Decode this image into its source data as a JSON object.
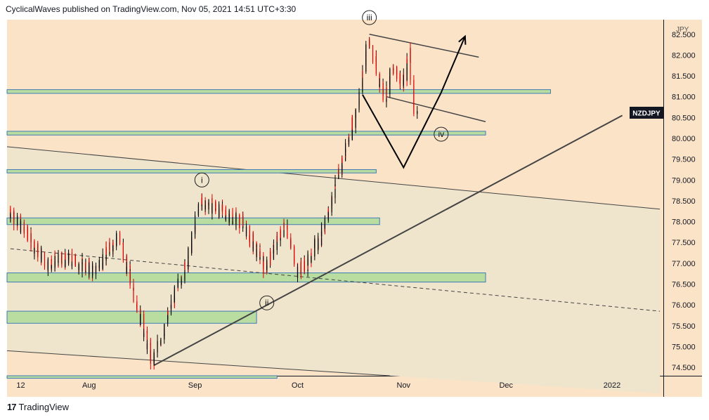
{
  "header": {
    "text": "CyclicalWaves published on TradingView.com, Nov 05, 2021 14:51 UTC+3:30"
  },
  "footer": {
    "logo": "17",
    "text": "TradingView"
  },
  "colors": {
    "background": "#fbe3c8",
    "channel_fill": "#efe4cc",
    "zone_fill": "#b9dca0",
    "zone_border": "#3f7bb5",
    "candle_up": "#000000",
    "candle_down": "#e00000",
    "trendline": "#444444"
  },
  "chart_data": {
    "type": "candlestick",
    "symbol": "NZDJPY",
    "currency": "JPY",
    "y_ticks": [
      "82.500",
      "82.000",
      "81.500",
      "81.000",
      "80.500",
      "80.000",
      "79.500",
      "79.000",
      "78.500",
      "78.000",
      "77.500",
      "77.000",
      "76.500",
      "76.000",
      "75.500",
      "75.000",
      "74.500"
    ],
    "x_ticks": [
      "12",
      "Aug",
      "Sep",
      "Oct",
      "Nov",
      "Dec",
      "2022"
    ],
    "ylim": [
      74.3,
      82.85
    ],
    "wave_labels": [
      "i",
      "ii",
      "iii",
      "iv"
    ],
    "key_points": [
      {
        "date": "2021-07-09",
        "price": 78.3
      },
      {
        "date": "2021-07-20",
        "price": 77.0
      },
      {
        "date": "2021-07-27",
        "price": 77.1
      },
      {
        "date": "2021-08-03",
        "price": 76.8
      },
      {
        "date": "2021-08-10",
        "price": 77.7
      },
      {
        "date": "2021-08-20",
        "price": 74.6
      },
      {
        "date": "2021-08-24",
        "price": 75.6
      },
      {
        "date": "2021-08-31",
        "price": 77.3
      },
      {
        "date": "2021-09-03",
        "price": 78.5
      },
      {
        "date": "2021-09-15",
        "price": 78.0
      },
      {
        "date": "2021-09-22",
        "price": 76.9
      },
      {
        "date": "2021-09-28",
        "price": 78.0
      },
      {
        "date": "2021-10-01",
        "price": 76.8
      },
      {
        "date": "2021-10-04",
        "price": 77.0
      },
      {
        "date": "2021-10-08",
        "price": 77.6
      },
      {
        "date": "2021-10-13",
        "price": 79.0
      },
      {
        "date": "2021-10-18",
        "price": 80.5
      },
      {
        "date": "2021-10-20",
        "price": 81.2
      },
      {
        "date": "2021-10-22",
        "price": 82.4
      },
      {
        "date": "2021-10-25",
        "price": 81.5
      },
      {
        "date": "2021-10-27",
        "price": 81.0
      },
      {
        "date": "2021-10-29",
        "price": 81.6
      },
      {
        "date": "2021-11-02",
        "price": 81.4
      },
      {
        "date": "2021-11-03",
        "price": 82.1
      },
      {
        "date": "2021-11-04",
        "price": 81.0
      },
      {
        "date": "2021-11-05",
        "price": 80.6
      }
    ],
    "zones": [
      {
        "from": "2021-07-08",
        "to": "2021-12-14",
        "low": 81.08,
        "high": 81.17
      },
      {
        "from": "2021-07-08",
        "to": "2021-11-25",
        "low": 80.08,
        "high": 80.17
      },
      {
        "from": "2021-07-08",
        "to": "2021-10-24",
        "low": 79.17,
        "high": 79.25
      },
      {
        "from": "2021-07-08",
        "to": "2021-10-25",
        "low": 77.93,
        "high": 78.09
      },
      {
        "from": "2021-07-08",
        "to": "2021-11-25",
        "low": 76.55,
        "high": 76.77
      },
      {
        "from": "2021-07-08",
        "to": "2021-09-19",
        "low": 75.56,
        "high": 75.85
      },
      {
        "from": "2021-07-08",
        "to": "2021-09-25",
        "low": 74.24,
        "high": 74.3
      }
    ],
    "channel_upper": {
      "from": {
        "date": "2021-07-08",
        "price": 79.8
      },
      "to": {
        "date": "2022-01-15",
        "price": 78.3
      }
    },
    "channel_lower": {
      "from": {
        "date": "2021-07-08",
        "price": 74.9
      },
      "to": {
        "date": "2021-10-28",
        "price": 74.3
      }
    },
    "trendlines": [
      {
        "from": {
          "date": "2021-08-20",
          "price": 74.55
        },
        "to": {
          "date": "2022-01-04",
          "price": 80.55
        },
        "style": "solid"
      },
      {
        "from": {
          "date": "2021-07-09",
          "price": 77.35
        },
        "to": {
          "date": "2022-01-15",
          "price": 75.85
        },
        "style": "dashed"
      },
      {
        "from": {
          "date": "2021-10-22",
          "price": 82.5
        },
        "to": {
          "date": "2021-11-23",
          "price": 81.95
        },
        "style": "solid"
      },
      {
        "from": {
          "date": "2021-10-27",
          "price": 81.0
        },
        "to": {
          "date": "2021-11-25",
          "price": 80.4
        },
        "style": "solid"
      }
    ],
    "projection": [
      {
        "date": "2021-10-20",
        "price": 81.05
      },
      {
        "date": "2021-11-01",
        "price": 79.3
      },
      {
        "date": "2021-11-12",
        "price": 81.1
      },
      {
        "date": "2021-11-19",
        "price": 82.45
      }
    ]
  }
}
